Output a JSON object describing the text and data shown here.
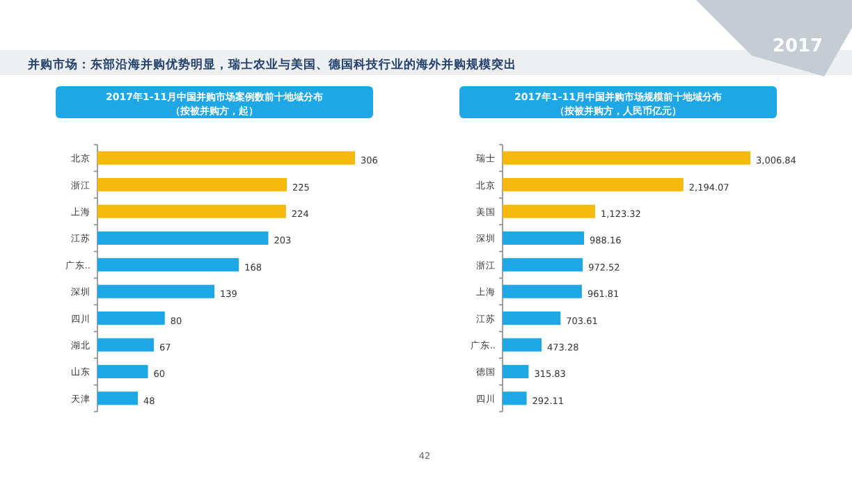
{
  "chart_data": [
    {
      "type": "bar",
      "orientation": "horizontal",
      "title": "2017年1-11月中国并购市场案例数前十地域分布",
      "subtitle": "（按被并购方，起）",
      "categories": [
        "北京",
        "浙江",
        "上海",
        "江苏",
        "广东..",
        "深圳",
        "四川",
        "湖北",
        "山东",
        "天津"
      ],
      "values": [
        306,
        225,
        224,
        203,
        168,
        139,
        80,
        67,
        60,
        48
      ],
      "colors": [
        "#f6b90f",
        "#f6b90f",
        "#f6b90f",
        "#1ea7e4",
        "#1ea7e4",
        "#1ea7e4",
        "#1ea7e4",
        "#1ea7e4",
        "#1ea7e4",
        "#1ea7e4"
      ],
      "data_labels": true,
      "annotations": [
        "并购市场：东部沿海并购优势明显，瑞士农业与美国、德国科技行业的海外并购规模突出",
        "2017",
        "42"
      ]
    },
    {
      "type": "bar",
      "orientation": "horizontal",
      "title": "2017年1-11月中国并购市场规模前十地域分布",
      "subtitle": "（按被并购方，人民币亿元）",
      "categories": [
        "瑞士",
        "北京",
        "美国",
        "深圳",
        "浙江",
        "上海",
        "江苏",
        "广东..",
        "德国",
        "四川"
      ],
      "values": [
        3006.84,
        2194.07,
        1123.32,
        988.16,
        972.52,
        961.81,
        703.61,
        473.28,
        315.83,
        292.11
      ],
      "colors": [
        "#f6b90f",
        "#f6b90f",
        "#f6b90f",
        "#1ea7e4",
        "#1ea7e4",
        "#1ea7e4",
        "#1ea7e4",
        "#1ea7e4",
        "#1ea7e4",
        "#1ea7e4"
      ],
      "value_labels": [
        "3,006.84",
        "2,194.07",
        "1,123.32",
        "988.16",
        "972.52",
        "961.81",
        "703.61",
        "473.28",
        "315.83",
        "292.11"
      ]
    }
  ]
}
